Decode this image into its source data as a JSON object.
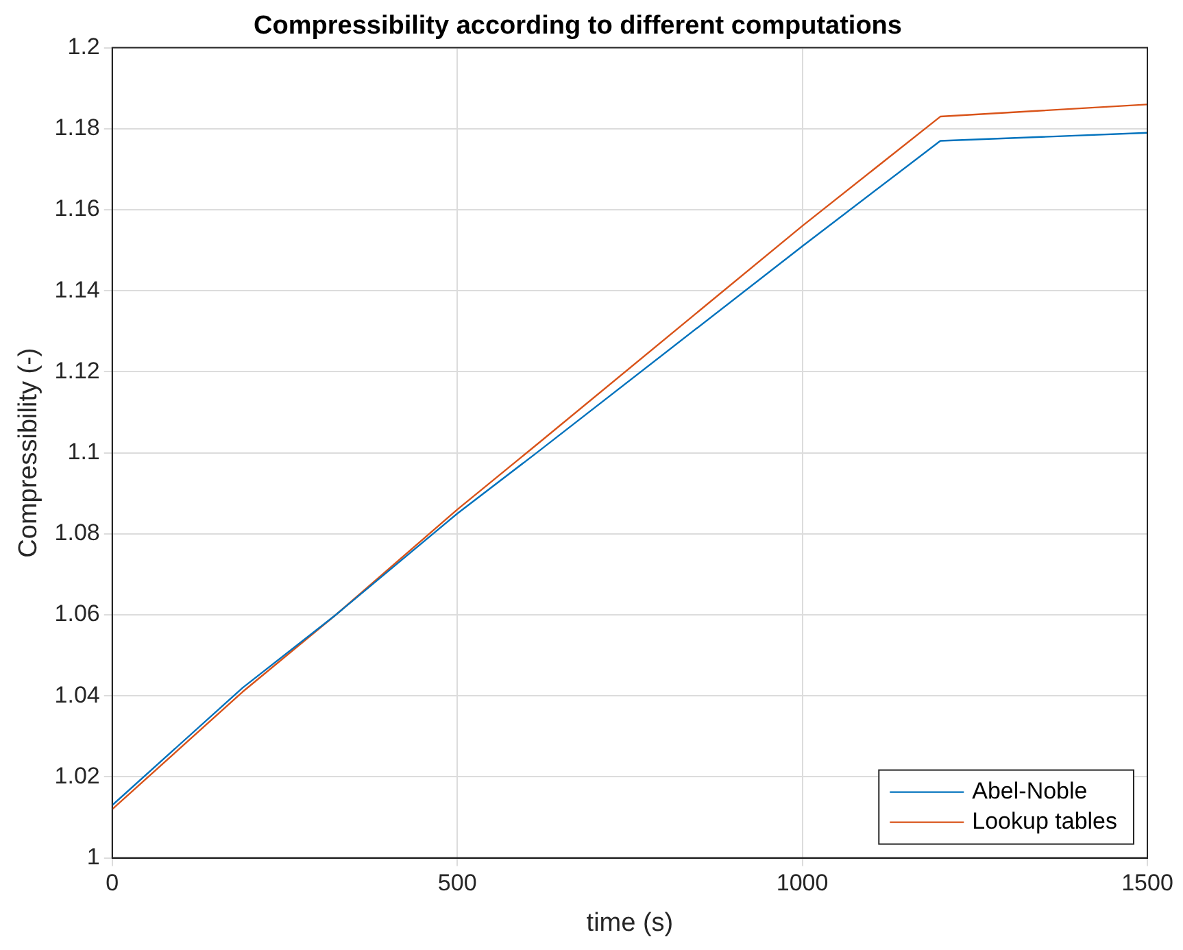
{
  "chart_data": {
    "type": "line",
    "title": "Compressibility according to different computations",
    "xlabel": "time (s)",
    "ylabel": "Compressibility (-)",
    "series": [
      {
        "name": "Abel-Noble",
        "color": "#0072bd",
        "x": [
          0,
          189,
          324,
          500,
          615,
          1000,
          1200,
          1500
        ],
        "values": [
          1.013,
          1.042,
          1.06,
          1.085,
          1.1,
          1.151,
          1.177,
          1.179
        ]
      },
      {
        "name": "Lookup tables",
        "color": "#d95319",
        "x": [
          0,
          189,
          324,
          500,
          615,
          1000,
          1200,
          1500
        ],
        "values": [
          1.012,
          1.041,
          1.06,
          1.086,
          1.102,
          1.156,
          1.183,
          1.186
        ]
      }
    ],
    "xlim": [
      0,
      1500
    ],
    "xticks": [
      0,
      500,
      1000,
      1500
    ],
    "ylim": [
      1,
      1.2
    ],
    "yticks": [
      1,
      1.02,
      1.04,
      1.06,
      1.08,
      1.1,
      1.12,
      1.14,
      1.16,
      1.18,
      1.2
    ],
    "grid": true,
    "legend": "bottom right",
    "marker": "none",
    "line_style": "solid"
  }
}
